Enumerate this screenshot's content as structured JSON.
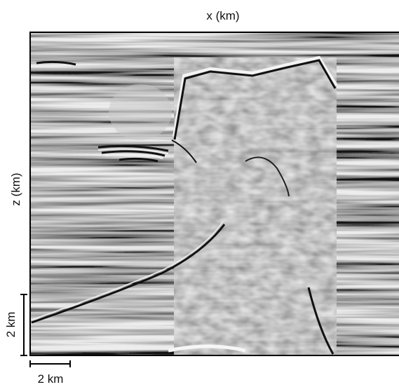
{
  "figure": {
    "x_axis_label": "x (km)",
    "z_axis_label": "z (km)",
    "vertical_scale_label": "2 km",
    "horizontal_scale_label": "2 km"
  }
}
